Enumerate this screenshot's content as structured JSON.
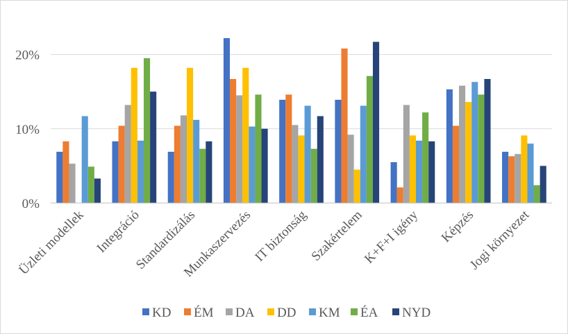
{
  "chart_data": {
    "type": "bar",
    "title": "",
    "xlabel": "",
    "ylabel": "",
    "ylim": [
      0,
      0.25
    ],
    "yticks": [
      0,
      0.1,
      0.2
    ],
    "ytick_labels": [
      "0%",
      "10%",
      "20%"
    ],
    "grid": true,
    "legend_position": "bottom",
    "categories": [
      "Üzleti modellek",
      "Integráció",
      "Standardizálás",
      "Munkaszervezés",
      "IT biztonság",
      "Szakértelem",
      "K+F+I igény",
      "Képzés",
      "Jogi környezet"
    ],
    "series": [
      {
        "name": "KD",
        "color": "#4472C4",
        "values": [
          0.069,
          0.083,
          0.069,
          0.222,
          0.139,
          0.139,
          0.055,
          0.153,
          0.069
        ]
      },
      {
        "name": "ÉM",
        "color": "#ED7D31",
        "values": [
          0.083,
          0.104,
          0.104,
          0.167,
          0.146,
          0.208,
          0.021,
          0.104,
          0.063
        ]
      },
      {
        "name": "DA",
        "color": "#A5A5A5",
        "values": [
          0.053,
          0.132,
          0.118,
          0.145,
          0.105,
          0.092,
          0.132,
          0.158,
          0.066
        ]
      },
      {
        "name": "DD",
        "color": "#FFC000",
        "values": [
          0.0,
          0.182,
          0.182,
          0.182,
          0.091,
          0.045,
          0.091,
          0.136,
          0.091
        ]
      },
      {
        "name": "KM",
        "color": "#5B9BD5",
        "values": [
          0.117,
          0.084,
          0.112,
          0.103,
          0.131,
          0.131,
          0.084,
          0.163,
          0.08
        ]
      },
      {
        "name": "ÉA",
        "color": "#70AD47",
        "values": [
          0.049,
          0.195,
          0.073,
          0.146,
          0.073,
          0.171,
          0.122,
          0.146,
          0.024
        ]
      },
      {
        "name": "NYD",
        "color": "#264478",
        "values": [
          0.033,
          0.15,
          0.083,
          0.1,
          0.117,
          0.217,
          0.083,
          0.167,
          0.05
        ]
      }
    ]
  },
  "colors": {
    "grid": "#d9d9d9",
    "axis": "#bfbfbf",
    "text": "#595959"
  }
}
